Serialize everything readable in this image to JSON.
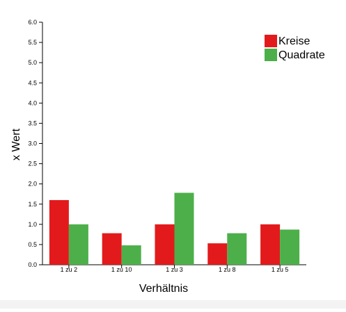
{
  "chart_data": {
    "type": "bar",
    "categories": [
      "1 zu 2",
      "1 zu 10",
      "1 zu 3",
      "1 zu 8",
      "1 zu 5"
    ],
    "series": [
      {
        "name": "Kreise",
        "color": "#e31a1c",
        "values": [
          1.6,
          0.78,
          1.0,
          0.53,
          1.0
        ]
      },
      {
        "name": "Quadrate",
        "color": "#4daf4a",
        "values": [
          1.0,
          0.48,
          1.78,
          0.78,
          0.87
        ]
      }
    ],
    "xlabel": "Verhältnis",
    "ylabel": "x Wert",
    "ylim": [
      0,
      6.0
    ],
    "yticks": [
      "0.0",
      "0.5",
      "1.0",
      "1.5",
      "2.0",
      "2.5",
      "3.0",
      "3.5",
      "4.0",
      "4.5",
      "5.0",
      "5.5",
      "6.0"
    ],
    "grid": false,
    "legend_position": "top-right"
  }
}
